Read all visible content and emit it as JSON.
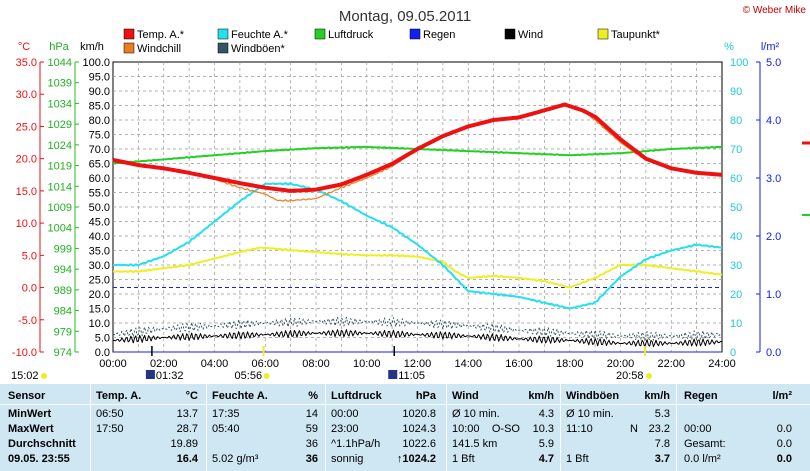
{
  "title": "Montag, 09.05.2011",
  "copyright": "© Weber Mike",
  "colors": {
    "temp": "#ee1111",
    "windchill": "#e87e20",
    "feuchte": "#22e0ee",
    "windboen": "#355560",
    "luftdruck": "#22d022",
    "regen": "#1122ee",
    "wind": "#000000",
    "taupunkt": "#eeee22",
    "background": "#cfe6f3"
  },
  "legend": [
    {
      "label": "Temp. A.*",
      "color_key": "temp"
    },
    {
      "label": "Feuchte A.*",
      "color_key": "feuchte"
    },
    {
      "label": "Luftdruck",
      "color_key": "luftdruck"
    },
    {
      "label": "Regen",
      "color_key": "regen"
    },
    {
      "label": "Wind",
      "color_key": "wind"
    },
    {
      "label": "Taupunkt*",
      "color_key": "taupunkt"
    },
    {
      "label": "Windchill",
      "color_key": "windchill"
    },
    {
      "label": "Windböen*",
      "color_key": "windboen"
    }
  ],
  "axes": {
    "celsius": {
      "unit": "°C",
      "ticks": [
        "35.0",
        "30.0",
        "25.0",
        "20.0",
        "15.0",
        "10.0",
        "5.0",
        "0.0",
        "-5.0",
        "-10.0"
      ]
    },
    "hpa": {
      "unit": "hPa",
      "ticks": [
        "1044",
        "1039",
        "1034",
        "1029",
        "1024",
        "1019",
        "1014",
        "1009",
        "1004",
        "999",
        "994",
        "989",
        "984",
        "979",
        "974"
      ]
    },
    "kmh": {
      "unit": "km/h",
      "ticks": [
        "100.0",
        "95.0",
        "90.0",
        "85.0",
        "80.0",
        "75.0",
        "70.0",
        "65.0",
        "60.0",
        "55.0",
        "50.0",
        "45.0",
        "40.0",
        "35.0",
        "30.0",
        "25.0",
        "20.0",
        "15.0",
        "10.0",
        "5.0",
        "0.0"
      ]
    },
    "percent": {
      "unit": "%",
      "ticks": [
        "100",
        "90",
        "80",
        "70",
        "60",
        "50",
        "40",
        "30",
        "20",
        "10",
        "0"
      ]
    },
    "rain": {
      "unit": "l/m²",
      "ticks": [
        "5.0",
        "4.0",
        "3.0",
        "2.0",
        "1.0",
        "0.0"
      ]
    },
    "time": {
      "ticks": [
        "00:00",
        "02:00",
        "04:00",
        "06:00",
        "08:00",
        "10:00",
        "12:00",
        "14:00",
        "16:00",
        "18:00",
        "20:00",
        "22:00",
        "24:00"
      ]
    }
  },
  "events": {
    "sunrise": "05:56",
    "sunset": "20:58",
    "moonrise": "01:32",
    "moonset": "11:05",
    "left_time": "15:02"
  },
  "chart_data": {
    "type": "line",
    "title": "Montag, 09.05.2011",
    "x_unit": "hours",
    "xlim": [
      0,
      24
    ],
    "series": [
      {
        "name": "Temp. A.*",
        "axis": "celsius",
        "x": [
          0,
          1,
          2,
          3,
          4,
          5,
          6,
          7,
          8,
          9,
          10,
          11,
          12,
          13,
          14,
          15,
          16,
          17,
          17.8,
          18.5,
          19,
          20,
          21,
          22,
          23,
          24
        ],
        "values": [
          19.8,
          19.0,
          18.5,
          17.8,
          17.0,
          16.2,
          15.5,
          15.0,
          15.2,
          16.0,
          17.5,
          19.2,
          21.5,
          23.5,
          25.0,
          26.0,
          26.4,
          27.5,
          28.4,
          27.5,
          26.5,
          23.0,
          20.0,
          18.5,
          17.8,
          17.5
        ]
      },
      {
        "name": "Windchill",
        "axis": "celsius",
        "x": [
          0,
          1,
          2,
          3,
          4,
          5,
          5.5,
          6,
          6.5,
          7,
          8,
          9,
          10,
          11,
          12,
          13,
          14,
          15,
          16,
          17,
          17.8,
          18.5,
          19,
          20,
          21,
          22,
          23,
          24
        ],
        "values": [
          19.8,
          19.0,
          18.5,
          17.8,
          16.8,
          15.5,
          15.0,
          14.5,
          13.5,
          13.5,
          13.8,
          15.5,
          17.0,
          18.8,
          21.5,
          23.5,
          25.0,
          26.0,
          26.4,
          27.5,
          28.4,
          27.5,
          26.0,
          22.5,
          19.8,
          18.5,
          17.8,
          17.5
        ]
      },
      {
        "name": "Feuchte A.*",
        "axis": "percent",
        "x": [
          0,
          1,
          2,
          3,
          4,
          5,
          6,
          7,
          8,
          9,
          10,
          11,
          12,
          13,
          14,
          15,
          16,
          17,
          18,
          19,
          20,
          21,
          22,
          23,
          24
        ],
        "values": [
          30,
          30,
          33,
          38,
          45,
          52,
          58,
          58,
          56,
          52,
          47,
          43,
          37,
          30,
          21,
          20,
          19,
          17,
          15,
          17,
          26,
          32,
          35,
          37,
          36
        ]
      },
      {
        "name": "Luftdruck",
        "axis": "hpa",
        "x": [
          0,
          2,
          4,
          6,
          8,
          10,
          12,
          14,
          16,
          18,
          20,
          22,
          24
        ],
        "values": [
          1019.5,
          1020.5,
          1021.5,
          1022.5,
          1023.2,
          1023.5,
          1023.0,
          1022.5,
          1022.0,
          1021.5,
          1022.0,
          1023.0,
          1023.5
        ]
      },
      {
        "name": "Taupunkt*",
        "axis": "celsius",
        "x": [
          0,
          1,
          2,
          3,
          4,
          5,
          5.8,
          6.5,
          7,
          8,
          9,
          10,
          11,
          12,
          13,
          13.5,
          14,
          15,
          16,
          17,
          18,
          19,
          20,
          21,
          22,
          23,
          24
        ],
        "values": [
          2.5,
          2.5,
          3.0,
          3.5,
          4.5,
          5.5,
          6.2,
          6.0,
          5.8,
          5.5,
          5.2,
          5.0,
          5.0,
          4.8,
          4.0,
          2.5,
          1.5,
          1.8,
          1.5,
          1.0,
          0.0,
          1.5,
          3.5,
          3.5,
          3.0,
          2.5,
          2.0
        ]
      },
      {
        "name": "Wind",
        "axis": "kmh",
        "x": [
          0,
          2,
          4,
          6,
          8,
          10,
          12,
          14,
          16,
          18,
          20,
          22,
          24
        ],
        "values": [
          4,
          5,
          5.5,
          6,
          6.5,
          6.5,
          6,
          5.5,
          4.5,
          4,
          3,
          3,
          3.5
        ]
      },
      {
        "name": "Windböen*",
        "axis": "kmh",
        "x": [
          0,
          2,
          4,
          6,
          8,
          10,
          12,
          14,
          16,
          18,
          20,
          22,
          24
        ],
        "values": [
          6,
          8,
          9,
          10,
          10.5,
          10.5,
          10,
          9,
          7.5,
          6.5,
          5.5,
          5.5,
          6
        ]
      },
      {
        "name": "Regen",
        "axis": "rain",
        "x": [
          0,
          24
        ],
        "values": [
          0,
          0
        ]
      }
    ],
    "ylims": {
      "celsius": [
        -10,
        35
      ],
      "hpa": [
        974,
        1044
      ],
      "kmh": [
        0,
        100
      ],
      "percent": [
        0,
        100
      ],
      "rain": [
        0,
        5
      ]
    },
    "grid": true
  },
  "table": {
    "headers": {
      "sensor": "Sensor",
      "temp": "Temp. A.",
      "temp_unit": "°C",
      "feuchte": "Feuchte A.",
      "feuchte_unit": "%",
      "luftdruck": "Luftdruck",
      "luftdruck_unit": "hPa",
      "wind": "Wind",
      "wind_unit": "km/h",
      "windboen": "Windböen",
      "windboen_unit": "km/h",
      "regen": "Regen",
      "regen_unit": "l/m²"
    },
    "rows": [
      {
        "label": "MinWert",
        "temp_time": "06:50",
        "temp_val": "13.7",
        "feuchte_time": "17:35",
        "feuchte_val": "14",
        "luft_time": "00:00",
        "luft_val": "1020.8",
        "wind_a": "Ø 10 min.",
        "wind_b": "",
        "wind_val": "4.3",
        "boen_a": "Ø 10 min.",
        "boen_b": "",
        "boen_val": "5.3",
        "regen_a": "",
        "regen_val": ""
      },
      {
        "label": "MaxWert",
        "temp_time": "17:50",
        "temp_val": "28.7",
        "feuchte_time": "05:40",
        "feuchte_val": "59",
        "luft_time": "23:00",
        "luft_val": "1024.3",
        "wind_a": "10:00",
        "wind_b": "O-SO",
        "wind_val": "10.3",
        "boen_a": "11:10",
        "boen_b": "N",
        "boen_val": "23.2",
        "regen_a": "00:00",
        "regen_val": "0.0"
      },
      {
        "label": "Durchschnitt",
        "temp_time": "",
        "temp_val": "19.89",
        "feuchte_time": "",
        "feuchte_val": "36",
        "luft_time": "^1.1hPa/h",
        "luft_val": "1022.6",
        "wind_a": "141.5 km",
        "wind_b": "",
        "wind_val": "5.9",
        "boen_a": "",
        "boen_b": "",
        "boen_val": "7.8",
        "regen_a": "Gesamt:",
        "regen_val": "0.0"
      },
      {
        "label": "09.05. 23:55",
        "temp_time": "",
        "temp_val": "16.4",
        "feuchte_time": "5.02 g/m³",
        "feuchte_val": "36",
        "luft_time": "sonnig",
        "luft_val": "↑1024.2",
        "wind_a": "1 Bft",
        "wind_b": "",
        "wind_val": "4.7",
        "boen_a": "1 Bft",
        "boen_b": "",
        "boen_val": "3.7",
        "regen_a": "0.0 l/m²",
        "regen_val": "0.0"
      }
    ]
  }
}
